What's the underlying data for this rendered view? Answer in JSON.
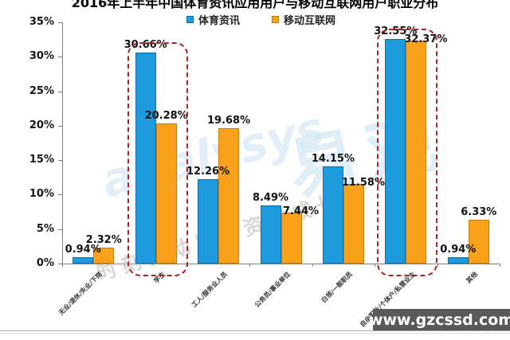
{
  "title": "2016年上半年中国体育资讯应用用户与移动互联网用户职业分布",
  "legend": {
    "items": [
      {
        "label": "体育资讯",
        "color": "#1E9BDC"
      },
      {
        "label": "移动互联网",
        "color": "#F9A11B"
      }
    ]
  },
  "watermark": {
    "brand_latin": "analysys",
    "brand_cn": "易观",
    "tagline": "时刻驱动用户资产成长"
  },
  "footer": {
    "site": "www.gzcssd.com"
  },
  "colors": {
    "series_blue": "#1E9BDC",
    "series_blue_border": "#0F6FA8",
    "series_orange": "#F9A11B",
    "series_orange_border": "#C87D0E",
    "highlight_dash": "#B22222",
    "axis": "#7F7F7F",
    "footer_bg": "#57595B"
  },
  "chart_data": {
    "type": "bar",
    "title": "2016年上半年中国体育资讯应用用户与移动互联网用户职业分布",
    "categories": [
      "无业/退休/失业/下岗",
      "学生",
      "工人/服务业人员",
      "公务员/事业单位",
      "白领/一般职员",
      "自由职业/个体户/私营业主",
      "其他"
    ],
    "series": [
      {
        "name": "体育资讯",
        "color": "#1E9BDC",
        "border_color": "#0F6FA8",
        "values": [
          0.94,
          30.66,
          12.26,
          8.49,
          14.15,
          32.55,
          0.94
        ]
      },
      {
        "name": "移动互联网",
        "color": "#F9A11B",
        "border_color": "#C87D0E",
        "values": [
          2.32,
          20.28,
          19.68,
          7.44,
          11.58,
          32.37,
          6.33
        ]
      }
    ],
    "ylim": [
      0,
      35
    ],
    "ytick_step": 5,
    "ytick_labels": [
      "0%",
      "5%",
      "10%",
      "15%",
      "20%",
      "25%",
      "30%",
      "35%"
    ],
    "data_label_format": "{value}%",
    "highlighted_categories": [
      "学生",
      "自由职业/个体户/私营业主"
    ],
    "highlight_style": "dashed-red-rounded-rect",
    "legend_position": "top",
    "grid": false
  }
}
